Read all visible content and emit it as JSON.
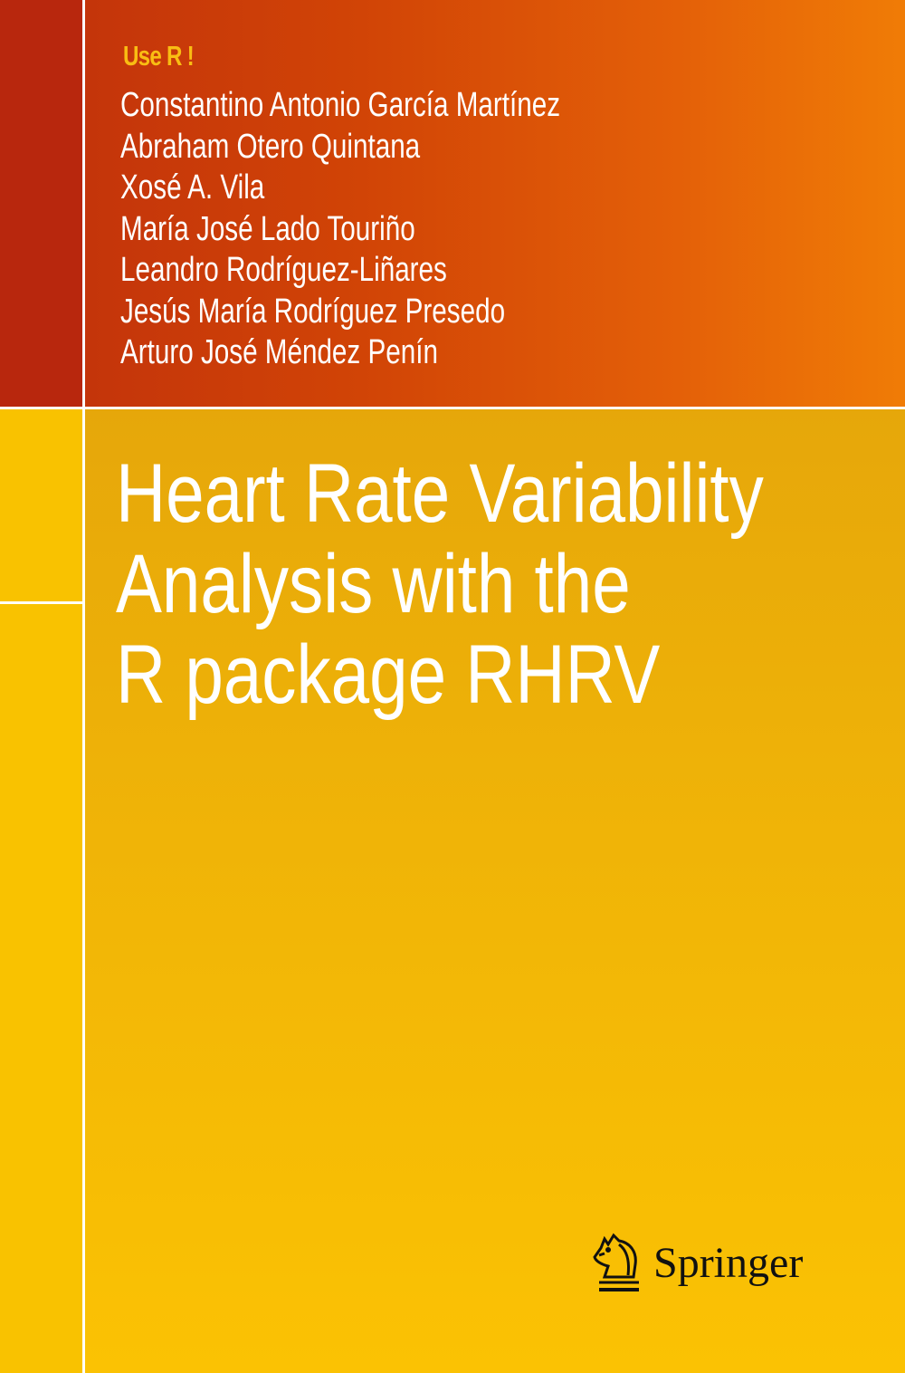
{
  "series": "Use R !",
  "authors": [
    "Constantino Antonio García Martínez",
    "Abraham Otero Quintana",
    "Xosé A. Vila",
    "María José Lado Touriño",
    "Leandro Rodríguez-Liñares",
    "Jesús María Rodríguez Presedo",
    "Arturo José Méndez Penín"
  ],
  "title": [
    "Heart Rate Variability",
    "Analysis with the",
    "R package RHRV"
  ],
  "publisher": {
    "name": "Springer",
    "icon": "knight-horse-icon"
  },
  "colors": {
    "top_band": "#d14406",
    "bottom_band": "#f0b407",
    "series_label": "#f9bd13"
  }
}
